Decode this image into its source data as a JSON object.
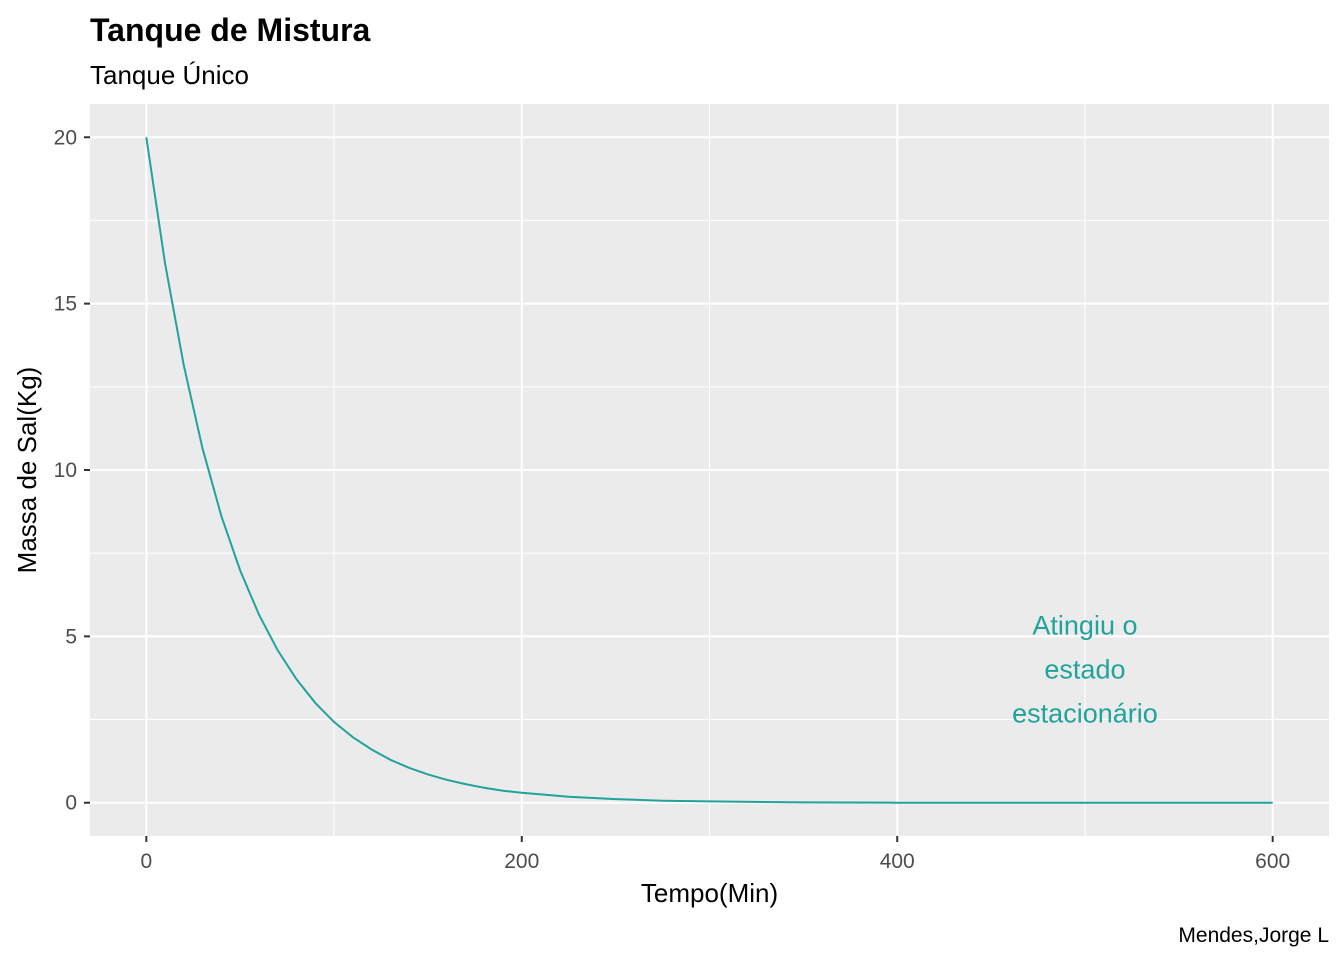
{
  "chart_data": {
    "type": "line",
    "title": "Tanque de Mistura",
    "subtitle": "Tanque Único",
    "xlabel": "Tempo(Min)",
    "ylabel": "Massa de Sal(Kg)",
    "caption": "Mendes,Jorge L",
    "xlim": [
      -30,
      630
    ],
    "ylim": [
      -1,
      21
    ],
    "x_ticks": [
      0,
      200,
      400,
      600
    ],
    "y_ticks": [
      0,
      5,
      10,
      15,
      20
    ],
    "x_tick_labels": [
      "0",
      "200",
      "400",
      "600"
    ],
    "y_tick_labels": [
      "0",
      "5",
      "10",
      "15",
      "20"
    ],
    "grid": true,
    "background": "#ebebeb",
    "grid_color": "#ffffff",
    "series": [
      {
        "color": "#21a39b",
        "x": [
          0,
          10,
          20,
          30,
          40,
          50,
          60,
          70,
          80,
          90,
          100,
          110,
          120,
          130,
          140,
          150,
          160,
          170,
          180,
          190,
          200,
          225,
          250,
          275,
          300,
          350,
          400,
          450,
          500,
          550,
          600
        ],
        "y": [
          20,
          16.2,
          13.13,
          10.64,
          8.61,
          6.98,
          5.65,
          4.58,
          3.71,
          3.0,
          2.43,
          1.97,
          1.6,
          1.29,
          1.05,
          0.85,
          0.69,
          0.56,
          0.45,
          0.36,
          0.3,
          0.18,
          0.11,
          0.06,
          0.04,
          0.01,
          0.0,
          0.0,
          0.0,
          0.0,
          0.0
        ]
      }
    ],
    "annotations": [
      {
        "lines": [
          "Atingiu o",
          "estado",
          "estacionário"
        ],
        "x": 500,
        "y": 4,
        "color": "#21a39b"
      }
    ]
  }
}
